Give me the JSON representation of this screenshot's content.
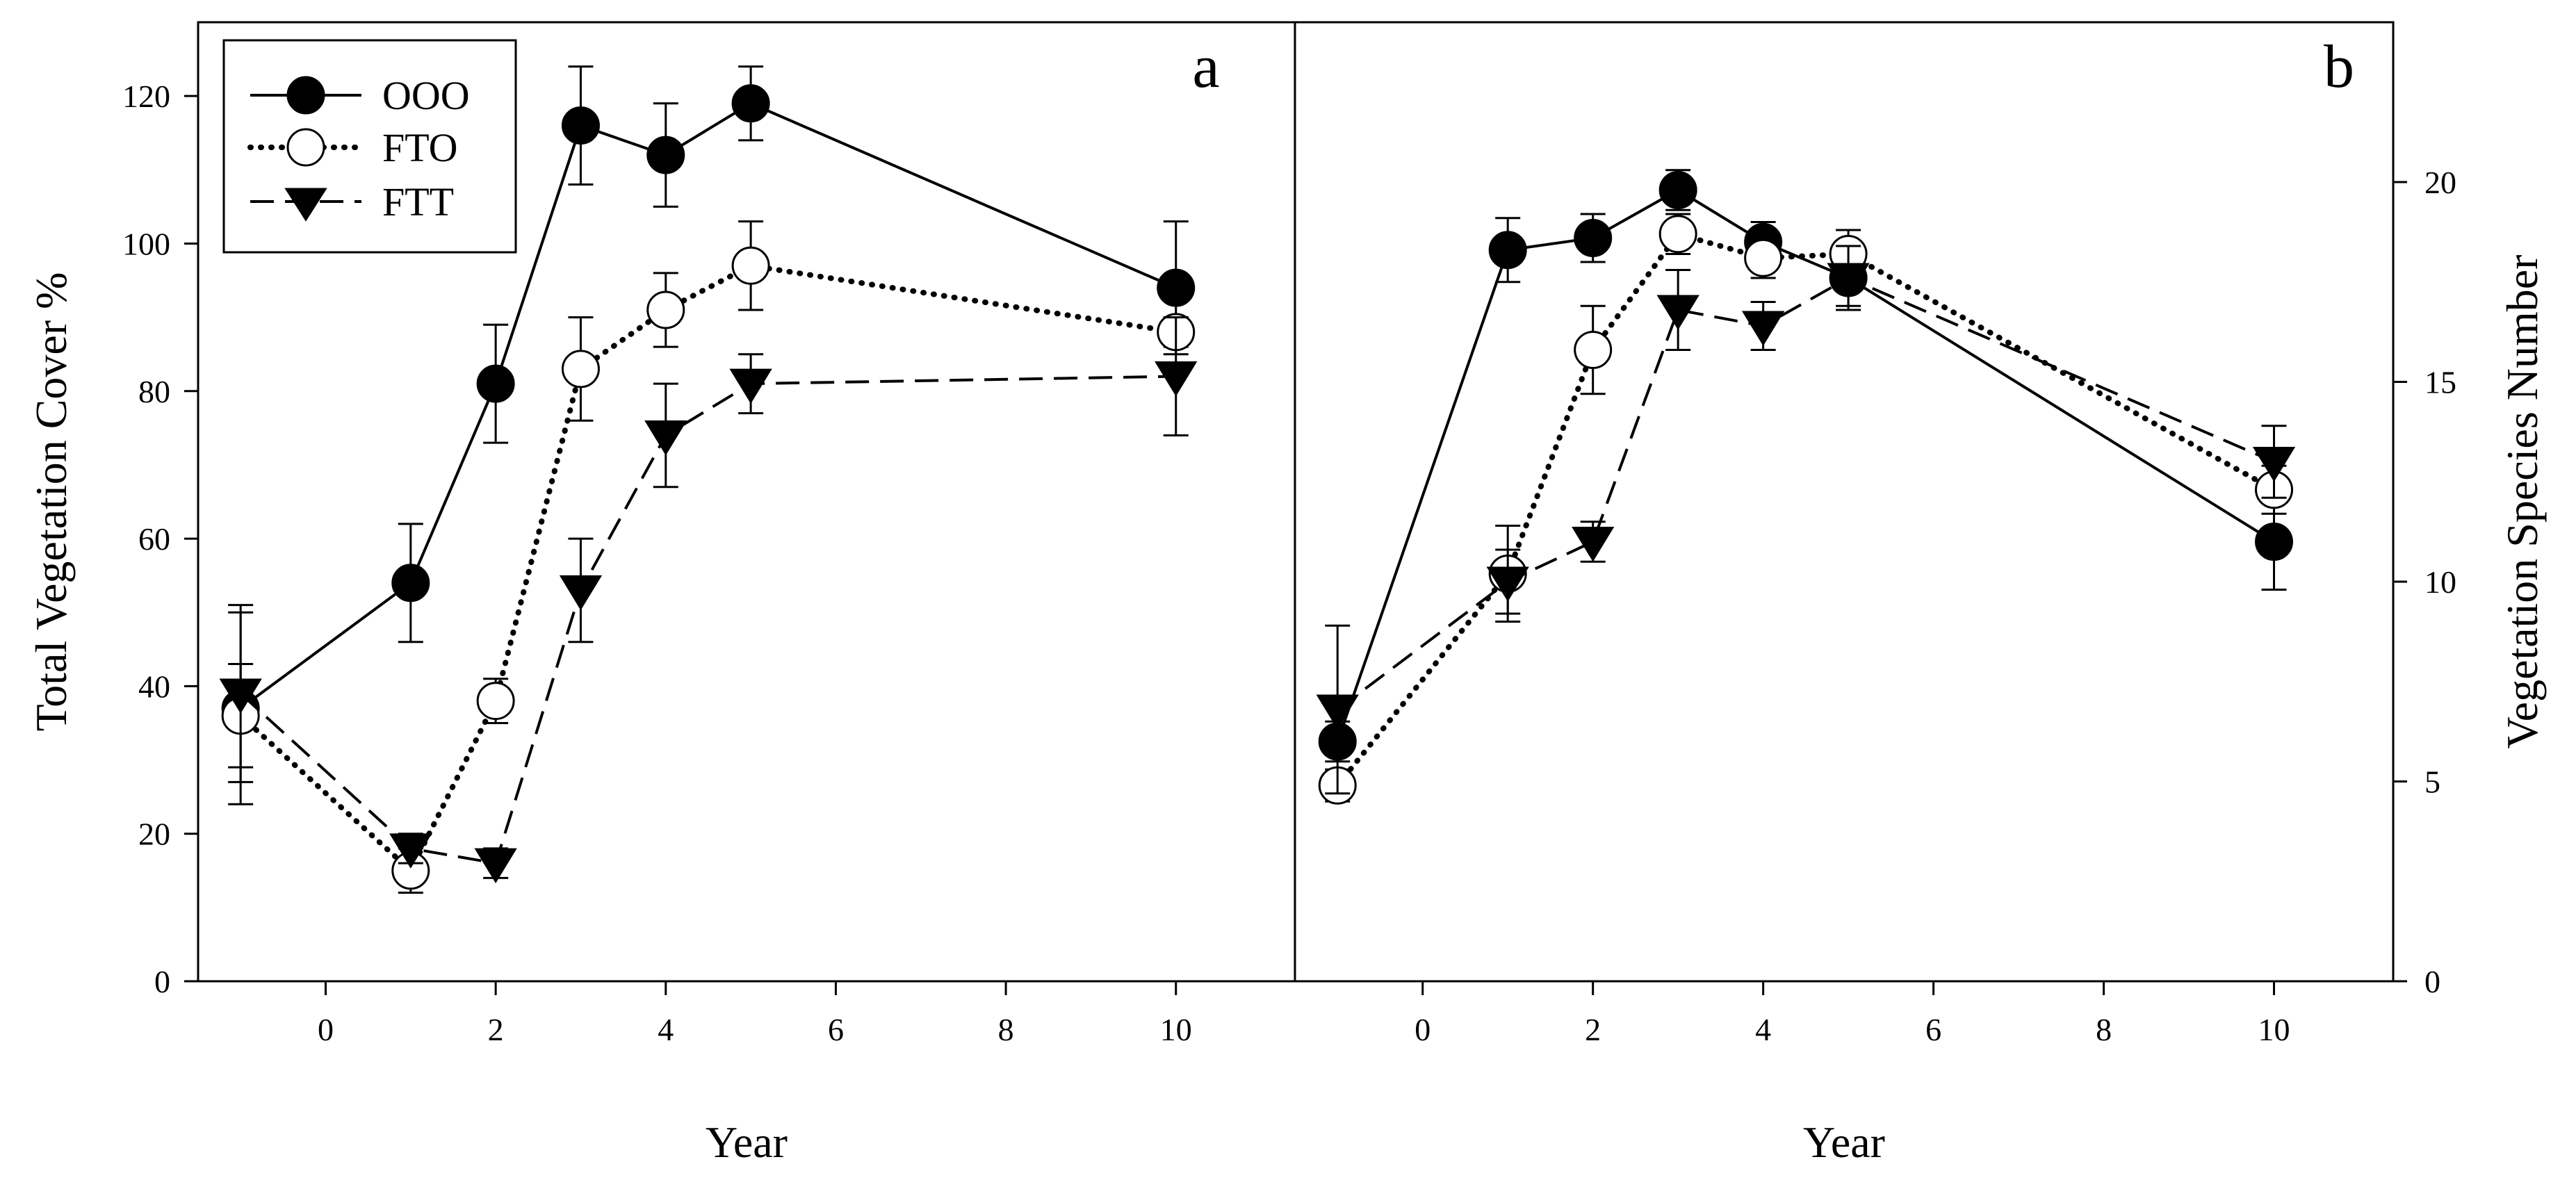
{
  "chart_data": [
    {
      "type": "line",
      "panel_label": "a",
      "title": "",
      "xlabel": "Year",
      "ylabel": "Total Vegetation Cover %",
      "xlim": [
        -1.5,
        11.4
      ],
      "ylim": [
        0,
        130
      ],
      "xticks": [
        0,
        2,
        4,
        6,
        8,
        10
      ],
      "yticks": [
        0,
        20,
        40,
        60,
        80,
        100,
        120
      ],
      "grid": false,
      "legend_position": "top-left",
      "series": [
        {
          "name": "OOO",
          "marker": "filled-circle",
          "line": "solid",
          "x": [
            -1,
            1,
            2,
            3,
            4,
            5,
            10
          ],
          "y": [
            37,
            54,
            81,
            116,
            112,
            119,
            94
          ],
          "err": [
            13,
            8,
            8,
            8,
            7,
            5,
            9
          ]
        },
        {
          "name": "FTO",
          "marker": "open-circle",
          "line": "dotted",
          "x": [
            -1,
            1,
            2,
            3,
            4,
            5,
            10
          ],
          "y": [
            36,
            15,
            38,
            83,
            91,
            97,
            88
          ],
          "err": [
            7,
            3,
            3,
            7,
            5,
            6,
            2
          ]
        },
        {
          "name": "FTT",
          "marker": "filled-triangle",
          "line": "dashed",
          "x": [
            -1,
            1,
            2,
            3,
            4,
            5,
            10
          ],
          "y": [
            39,
            18,
            16,
            53,
            74,
            81,
            82
          ],
          "err": [
            12,
            2,
            2,
            7,
            7,
            4,
            8
          ]
        }
      ]
    },
    {
      "type": "line",
      "panel_label": "b",
      "title": "",
      "xlabel": "Year",
      "ylabel": "Vegetation Species Number",
      "xlim": [
        -1.5,
        11.4
      ],
      "ylim": [
        0,
        24
      ],
      "xticks": [
        0,
        2,
        4,
        6,
        8,
        10
      ],
      "yticks": [
        0,
        5,
        10,
        15,
        20
      ],
      "grid": false,
      "series": [
        {
          "name": "OOO",
          "marker": "filled-circle",
          "line": "solid",
          "x": [
            -1,
            1,
            2,
            3,
            4,
            5,
            10
          ],
          "y": [
            6,
            18.3,
            18.6,
            19.8,
            18.5,
            17.6,
            11
          ],
          "err": [
            0.5,
            0.8,
            0.6,
            0.5,
            0.5,
            0.7,
            1.2
          ]
        },
        {
          "name": "FTO",
          "marker": "open-circle",
          "line": "dotted",
          "x": [
            -1,
            1,
            2,
            3,
            4,
            5,
            10
          ],
          "y": [
            4.9,
            10.2,
            15.8,
            18.7,
            18.1,
            18.2,
            12.3
          ],
          "err": [
            0.4,
            1.2,
            1.1,
            0.5,
            0.5,
            0.6,
            0.6
          ]
        },
        {
          "name": "FTT",
          "marker": "filled-triangle",
          "line": "dashed",
          "x": [
            -1,
            1,
            2,
            3,
            4,
            5,
            10
          ],
          "y": [
            6.8,
            10,
            11,
            16.8,
            16.4,
            17.6,
            13
          ],
          "err": [
            2.1,
            0.8,
            0.5,
            1.0,
            0.6,
            0.8,
            0.9
          ]
        }
      ]
    }
  ]
}
